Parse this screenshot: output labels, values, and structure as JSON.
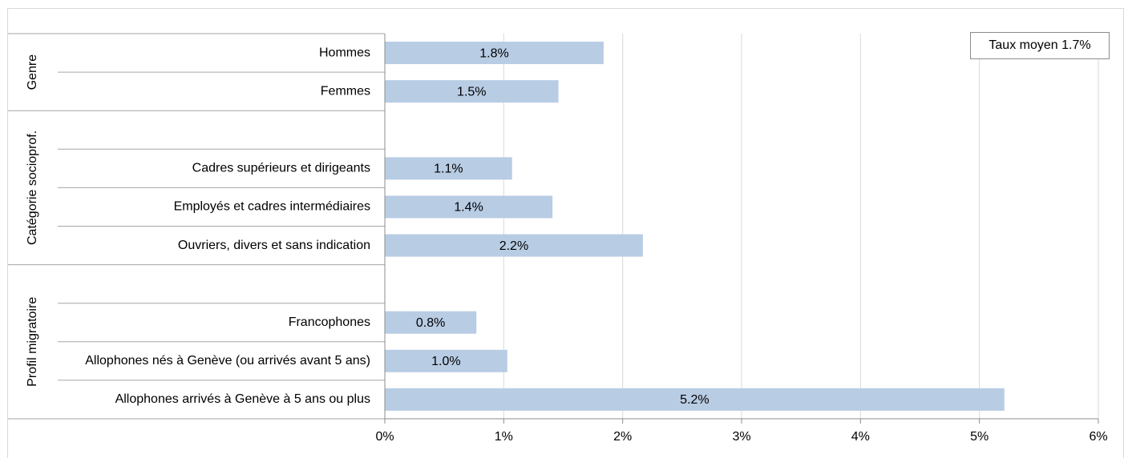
{
  "chart_data": {
    "type": "bar",
    "orientation": "horizontal",
    "groups": [
      {
        "label": "Genre",
        "items": [
          {
            "label": "Hommes",
            "value": 1.84,
            "data_label": "1.8%"
          },
          {
            "label": "Femmes",
            "value": 1.46,
            "data_label": "1.5%"
          }
        ]
      },
      {
        "label": "Catégorie socioprof.",
        "items": [
          {
            "label": "",
            "value": null,
            "data_label": ""
          },
          {
            "label": "Cadres supérieurs et dirigeants",
            "value": 1.07,
            "data_label": "1.1%"
          },
          {
            "label": "Employés et cadres intermédiaires",
            "value": 1.41,
            "data_label": "1.4%"
          },
          {
            "label": "Ouvriers, divers et sans indication",
            "value": 2.17,
            "data_label": "2.2%"
          }
        ]
      },
      {
        "label": "Profil migratoire",
        "items": [
          {
            "label": "",
            "value": null,
            "data_label": ""
          },
          {
            "label": "Francophones",
            "value": 0.77,
            "data_label": "0.8%"
          },
          {
            "label": "Allophones nés à Genève (ou arrivés avant 5 ans)",
            "value": 1.03,
            "data_label": "1.0%"
          },
          {
            "label": "Allophones arrivés à Genève à 5 ans ou plus",
            "value": 5.21,
            "data_label": "5.2%"
          }
        ]
      }
    ],
    "x_ticks": [
      {
        "value": 0,
        "label": "0%"
      },
      {
        "value": 1,
        "label": "1%"
      },
      {
        "value": 2,
        "label": "2%"
      },
      {
        "value": 3,
        "label": "3%"
      },
      {
        "value": 4,
        "label": "4%"
      },
      {
        "value": 5,
        "label": "5%"
      },
      {
        "value": 6,
        "label": "6%"
      }
    ],
    "xlim": [
      0,
      6
    ],
    "grid": true,
    "bar_color": "#b8cce4",
    "annotation": "Taux moyen 1.7%",
    "annotation_position": "top-right"
  }
}
